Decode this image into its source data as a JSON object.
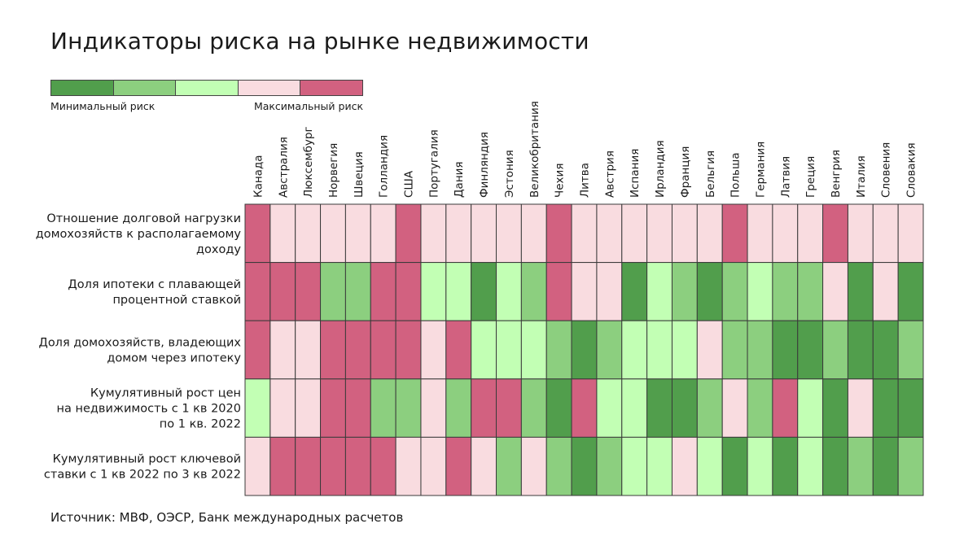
{
  "title": "Индикаторы риска на рынке недвижимости",
  "legend": {
    "min_label": "Минимальный риск",
    "max_label": "Максимальный риск",
    "colors": [
      "#519e4c",
      "#8ccf7f",
      "#c2ffb4",
      "#f9dce0",
      "#d26180"
    ]
  },
  "source": "Источник: МВФ, ОЭСР, Банк международных расчетов",
  "chart_data": {
    "type": "heatmap",
    "title": "Индикаторы риска на рынке недвижимости",
    "scale": "1 = минимальный риск … 5 = максимальный риск",
    "columns": [
      "Канада",
      "Австралия",
      "Люксембург",
      "Норвегия",
      "Швеция",
      "Голландия",
      "США",
      "Португалия",
      "Дания",
      "Финляндия",
      "Эстония",
      "Великобритания",
      "Чехия",
      "Литва",
      "Австрия",
      "Испания",
      "Ирландия",
      "Франция",
      "Бельгия",
      "Польша",
      "Германия",
      "Латвия",
      "Греция",
      "Венгрия",
      "Италия",
      "Словения",
      "Словакия"
    ],
    "rows": [
      {
        "label": [
          "Отношение долговой нагрузки",
          "домохозяйств к располагаемому",
          "доходу"
        ],
        "values": [
          5,
          4,
          4,
          4,
          4,
          4,
          5,
          4,
          4,
          4,
          4,
          4,
          5,
          4,
          4,
          4,
          4,
          4,
          4,
          5,
          4,
          4,
          4,
          5,
          4,
          4,
          4
        ]
      },
      {
        "label": [
          "Доля ипотеки с плавающей",
          "процентной ставкой"
        ],
        "values": [
          5,
          5,
          5,
          2,
          2,
          5,
          5,
          3,
          3,
          1,
          3,
          2,
          5,
          4,
          4,
          1,
          3,
          2,
          1,
          2,
          3,
          2,
          2,
          4,
          1,
          4,
          1
        ]
      },
      {
        "label": [
          "Доля домохозяйств, владеющих",
          "домом через ипотеку"
        ],
        "values": [
          5,
          4,
          4,
          5,
          5,
          5,
          5,
          4,
          5,
          3,
          3,
          3,
          2,
          1,
          2,
          3,
          3,
          3,
          4,
          2,
          2,
          1,
          1,
          2,
          1,
          1,
          2
        ]
      },
      {
        "label": [
          "Кумулятивный рост цен",
          "на недвижимость с 1 кв 2020",
          "по 1 кв. 2022"
        ],
        "values": [
          3,
          4,
          4,
          5,
          5,
          2,
          2,
          4,
          2,
          5,
          5,
          2,
          1,
          5,
          3,
          3,
          1,
          1,
          2,
          4,
          2,
          5,
          3,
          1,
          4,
          1,
          1
        ]
      },
      {
        "label": [
          "Кумулятивный рост ключевой",
          "ставки с 1 кв 2022 по 3 кв 2022"
        ],
        "values": [
          4,
          5,
          5,
          5,
          5,
          5,
          4,
          4,
          5,
          4,
          2,
          4,
          2,
          1,
          2,
          3,
          3,
          4,
          3,
          1,
          3,
          1,
          3,
          1,
          2,
          1,
          2
        ]
      }
    ]
  }
}
